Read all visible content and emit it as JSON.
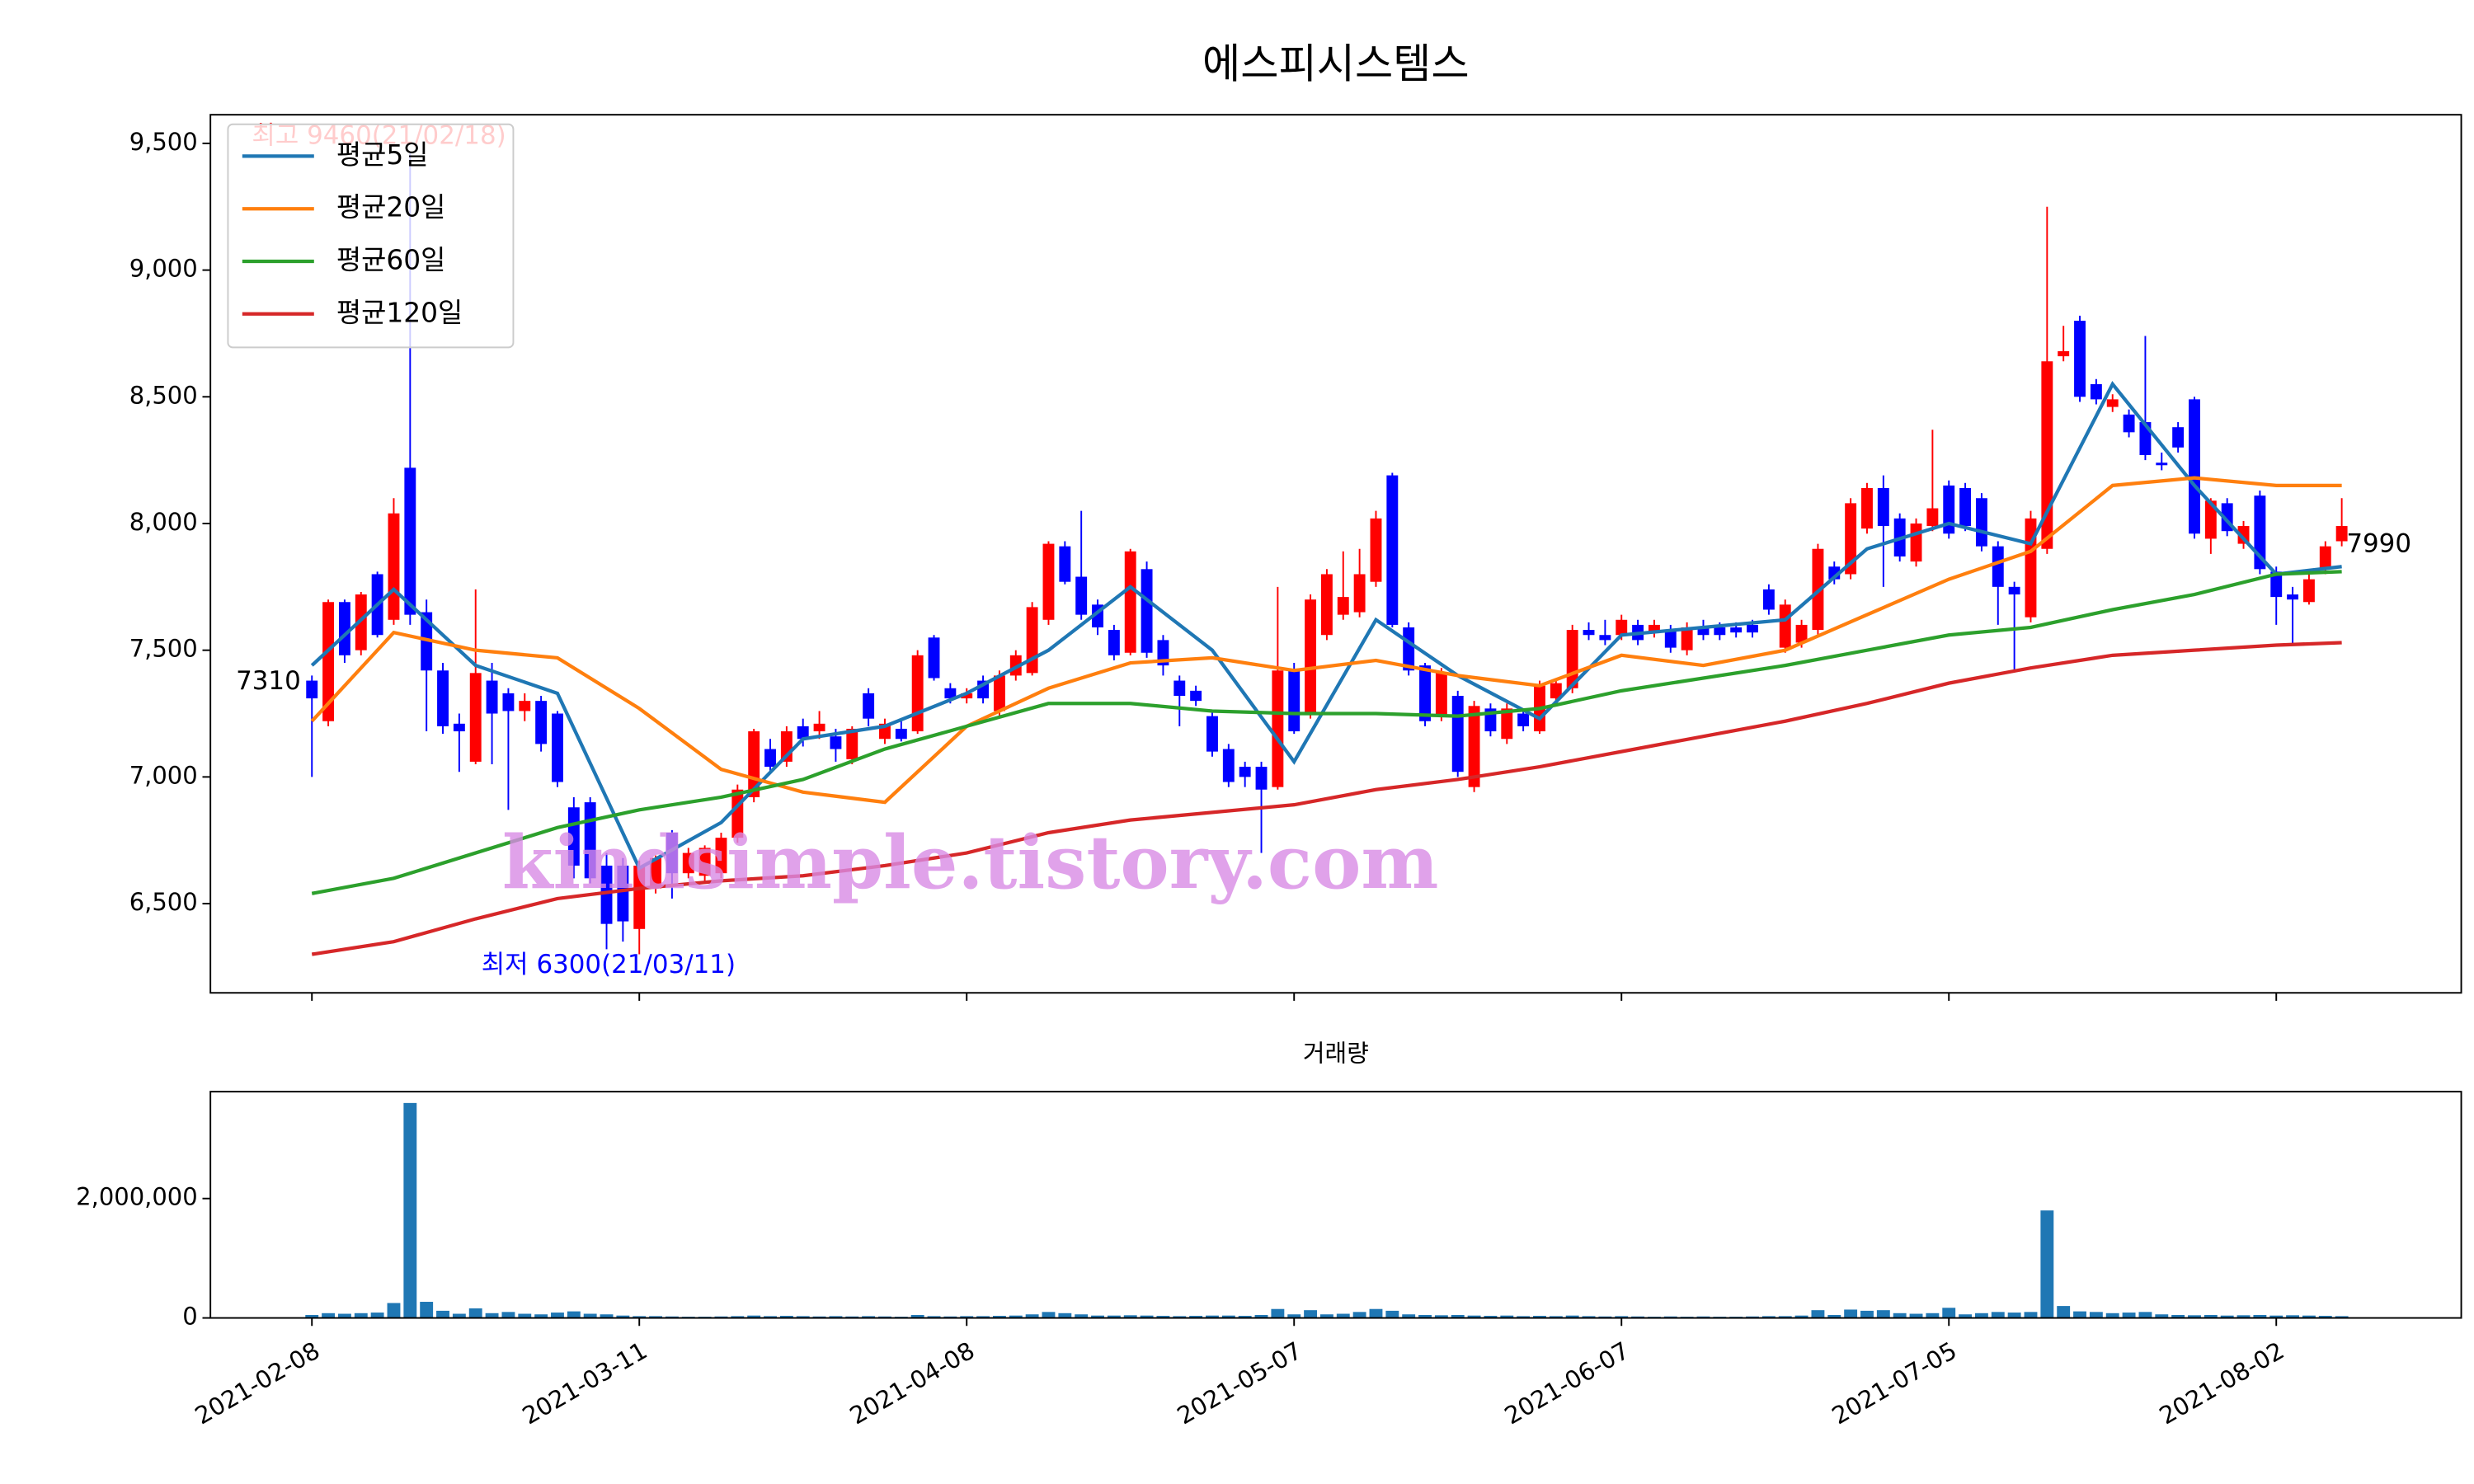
{
  "chart_data": [
    {
      "type": "candlestick",
      "title": "에스피시스템스",
      "xlim": [
        -6.2,
        131.3
      ],
      "ylim": [
        6148,
        9613
      ],
      "xticks": [
        0,
        20,
        40,
        60,
        80,
        100,
        120
      ],
      "yticks": [
        {
          "value": 6500,
          "label": "6,500"
        },
        {
          "value": 7000,
          "label": "7,000"
        },
        {
          "value": 7500,
          "label": "7,500"
        },
        {
          "value": 8000,
          "label": "8,000"
        },
        {
          "value": 8500,
          "label": "8,500"
        },
        {
          "value": 9000,
          "label": "9,000"
        },
        {
          "value": 9500,
          "label": "9,500"
        }
      ],
      "up_color": "#ff0000",
      "down_color": "#0000ff",
      "legend": "upper left",
      "annotations": [
        {
          "text": "최고 9460(21/02/18)",
          "color": "#ff0000"
        },
        {
          "text": "최저 6300(21/03/11)",
          "color": "#0000ff"
        },
        {
          "text": "7310",
          "color": "#000000"
        },
        {
          "text": "7990",
          "color": "#000000"
        }
      ],
      "watermark": "kindsimple.tistory.com",
      "ohlc": [
        [
          7380,
          7400,
          7000,
          7310
        ],
        [
          7220,
          7700,
          7200,
          7690
        ],
        [
          7690,
          7700,
          7450,
          7480
        ],
        [
          7500,
          7730,
          7480,
          7720
        ],
        [
          7800,
          7810,
          7550,
          7560
        ],
        [
          7620,
          8100,
          7600,
          8040
        ],
        [
          8220,
          9460,
          7600,
          7640
        ],
        [
          7650,
          7700,
          7180,
          7420
        ],
        [
          7420,
          7450,
          7170,
          7200
        ],
        [
          7210,
          7250,
          7020,
          7180
        ],
        [
          7060,
          7740,
          7050,
          7410
        ],
        [
          7380,
          7450,
          7050,
          7250
        ],
        [
          7330,
          7350,
          6870,
          7260
        ],
        [
          7260,
          7330,
          7220,
          7300
        ],
        [
          7300,
          7320,
          7100,
          7130
        ],
        [
          7250,
          7260,
          6960,
          6980
        ],
        [
          6880,
          6920,
          6600,
          6650
        ],
        [
          6900,
          6920,
          6580,
          6600
        ],
        [
          6650,
          6700,
          6320,
          6420
        ],
        [
          6650,
          6680,
          6350,
          6430
        ],
        [
          6400,
          6670,
          6300,
          6650
        ],
        [
          6560,
          6690,
          6540,
          6680
        ],
        [
          6780,
          6790,
          6520,
          6620
        ],
        [
          6620,
          6720,
          6600,
          6700
        ],
        [
          6610,
          6730,
          6580,
          6720
        ],
        [
          6620,
          6780,
          6600,
          6760
        ],
        [
          6760,
          6970,
          6740,
          6950
        ],
        [
          6920,
          7190,
          6900,
          7180
        ],
        [
          7110,
          7150,
          7020,
          7040
        ],
        [
          7060,
          7200,
          7040,
          7180
        ],
        [
          7200,
          7230,
          7120,
          7150
        ],
        [
          7180,
          7260,
          7150,
          7210
        ],
        [
          7160,
          7190,
          7060,
          7110
        ],
        [
          7070,
          7200,
          7050,
          7190
        ],
        [
          7330,
          7350,
          7200,
          7230
        ],
        [
          7150,
          7230,
          7130,
          7210
        ],
        [
          7190,
          7220,
          7140,
          7150
        ],
        [
          7180,
          7500,
          7170,
          7480
        ],
        [
          7550,
          7560,
          7380,
          7390
        ],
        [
          7350,
          7370,
          7290,
          7310
        ],
        [
          7310,
          7350,
          7290,
          7330
        ],
        [
          7380,
          7400,
          7290,
          7310
        ],
        [
          7260,
          7420,
          7240,
          7400
        ],
        [
          7400,
          7500,
          7380,
          7480
        ],
        [
          7410,
          7690,
          7400,
          7670
        ],
        [
          7620,
          7930,
          7600,
          7920
        ],
        [
          7910,
          7930,
          7760,
          7770
        ],
        [
          7790,
          8050,
          7620,
          7640
        ],
        [
          7680,
          7700,
          7560,
          7590
        ],
        [
          7580,
          7600,
          7460,
          7480
        ],
        [
          7490,
          7900,
          7480,
          7890
        ],
        [
          7820,
          7850,
          7470,
          7490
        ],
        [
          7540,
          7560,
          7400,
          7440
        ],
        [
          7380,
          7400,
          7200,
          7320
        ],
        [
          7340,
          7360,
          7280,
          7300
        ],
        [
          7240,
          7260,
          7080,
          7100
        ],
        [
          7110,
          7130,
          6960,
          6980
        ],
        [
          7040,
          7060,
          6960,
          7000
        ],
        [
          7040,
          7060,
          6700,
          6950
        ],
        [
          6960,
          7750,
          6950,
          7420
        ],
        [
          7420,
          7450,
          7170,
          7180
        ],
        [
          7250,
          7720,
          7230,
          7700
        ],
        [
          7560,
          7820,
          7540,
          7800
        ],
        [
          7640,
          7890,
          7620,
          7710
        ],
        [
          7650,
          7900,
          7630,
          7800
        ],
        [
          7770,
          8050,
          7750,
          8020
        ],
        [
          8190,
          8200,
          7590,
          7600
        ],
        [
          7590,
          7610,
          7400,
          7420
        ],
        [
          7440,
          7450,
          7200,
          7220
        ],
        [
          7240,
          7430,
          7220,
          7410
        ],
        [
          7320,
          7340,
          7000,
          7020
        ],
        [
          6960,
          7300,
          6940,
          7280
        ],
        [
          7270,
          7290,
          7160,
          7180
        ],
        [
          7150,
          7290,
          7130,
          7270
        ],
        [
          7250,
          7270,
          7180,
          7200
        ],
        [
          7180,
          7380,
          7170,
          7360
        ],
        [
          7310,
          7390,
          7290,
          7370
        ],
        [
          7350,
          7600,
          7330,
          7580
        ],
        [
          7580,
          7610,
          7540,
          7560
        ],
        [
          7560,
          7620,
          7520,
          7540
        ],
        [
          7560,
          7640,
          7540,
          7620
        ],
        [
          7600,
          7620,
          7520,
          7540
        ],
        [
          7570,
          7620,
          7550,
          7600
        ],
        [
          7580,
          7600,
          7490,
          7510
        ],
        [
          7500,
          7610,
          7480,
          7590
        ],
        [
          7590,
          7620,
          7540,
          7560
        ],
        [
          7590,
          7610,
          7540,
          7560
        ],
        [
          7590,
          7610,
          7550,
          7570
        ],
        [
          7600,
          7620,
          7550,
          7570
        ],
        [
          7740,
          7760,
          7640,
          7660
        ],
        [
          7510,
          7700,
          7490,
          7680
        ],
        [
          7530,
          7620,
          7510,
          7600
        ],
        [
          7580,
          7920,
          7560,
          7900
        ],
        [
          7830,
          7850,
          7760,
          7780
        ],
        [
          7800,
          8100,
          7780,
          8080
        ],
        [
          7980,
          8160,
          7960,
          8140
        ],
        [
          8140,
          8190,
          7750,
          7990
        ],
        [
          8020,
          8040,
          7850,
          7870
        ],
        [
          7850,
          8020,
          7830,
          8000
        ],
        [
          7990,
          8370,
          7970,
          8060
        ],
        [
          8150,
          8170,
          7940,
          7960
        ],
        [
          8140,
          8160,
          7970,
          7990
        ],
        [
          8100,
          8120,
          7890,
          7910
        ],
        [
          7910,
          7930,
          7600,
          7750
        ],
        [
          7750,
          7770,
          7420,
          7720
        ],
        [
          7630,
          8050,
          7610,
          8020
        ],
        [
          7900,
          9250,
          7880,
          8640
        ],
        [
          8660,
          8780,
          8640,
          8680
        ],
        [
          8800,
          8820,
          8480,
          8500
        ],
        [
          8550,
          8570,
          8470,
          8490
        ],
        [
          8460,
          8510,
          8440,
          8490
        ],
        [
          8430,
          8450,
          8340,
          8360
        ],
        [
          8400,
          8740,
          8250,
          8270
        ],
        [
          8240,
          8280,
          8210,
          8230
        ],
        [
          8380,
          8400,
          8280,
          8300
        ],
        [
          8490,
          8500,
          7940,
          7960
        ],
        [
          7940,
          8100,
          7880,
          8090
        ],
        [
          8080,
          8100,
          7950,
          7970
        ],
        [
          7920,
          8010,
          7900,
          7990
        ],
        [
          8110,
          8130,
          7800,
          7820
        ],
        [
          7810,
          7830,
          7600,
          7710
        ],
        [
          7720,
          7750,
          7520,
          7700
        ],
        [
          7690,
          7800,
          7680,
          7780
        ],
        [
          7820,
          7930,
          7800,
          7910
        ],
        [
          7930,
          8100,
          7910,
          7990
        ]
      ],
      "series": [
        {
          "name": "평균5일",
          "color": "#1f77b4",
          "x": [
            0,
            5,
            10,
            15,
            20,
            25,
            30,
            35,
            40,
            45,
            50,
            55,
            60,
            65,
            70,
            75,
            80,
            85,
            90,
            95,
            100,
            105,
            110,
            115,
            120,
            124
          ],
          "values": [
            7440,
            7740,
            7440,
            7330,
            6640,
            6820,
            7150,
            7200,
            7330,
            7500,
            7750,
            7500,
            7060,
            7620,
            7400,
            7230,
            7560,
            7590,
            7620,
            7900,
            8000,
            7920,
            8550,
            8150,
            7800,
            7830
          ]
        },
        {
          "name": "평균20일",
          "color": "#ff7f0e",
          "x": [
            0,
            5,
            10,
            15,
            20,
            25,
            30,
            35,
            40,
            45,
            50,
            55,
            60,
            65,
            70,
            75,
            80,
            85,
            90,
            95,
            100,
            105,
            110,
            115,
            120,
            124
          ],
          "values": [
            7220,
            7570,
            7500,
            7470,
            7270,
            7030,
            6940,
            6900,
            7200,
            7350,
            7450,
            7470,
            7420,
            7460,
            7400,
            7360,
            7480,
            7440,
            7500,
            7640,
            7780,
            7890,
            8150,
            8180,
            8150,
            8150
          ]
        },
        {
          "name": "평균60일",
          "color": "#2ca02c",
          "x": [
            0,
            5,
            10,
            15,
            20,
            25,
            30,
            35,
            40,
            45,
            50,
            55,
            60,
            65,
            70,
            75,
            80,
            85,
            90,
            95,
            100,
            105,
            110,
            115,
            120,
            124
          ],
          "values": [
            6540,
            6600,
            6700,
            6800,
            6870,
            6920,
            6990,
            7110,
            7200,
            7290,
            7290,
            7260,
            7250,
            7250,
            7240,
            7270,
            7340,
            7390,
            7440,
            7500,
            7560,
            7590,
            7660,
            7720,
            7800,
            7810
          ]
        },
        {
          "name": "평균120일",
          "color": "#d62728",
          "x": [
            0,
            5,
            10,
            15,
            20,
            25,
            30,
            35,
            40,
            45,
            50,
            55,
            60,
            65,
            70,
            75,
            80,
            85,
            90,
            95,
            100,
            105,
            110,
            115,
            120,
            124
          ],
          "values": [
            6300,
            6350,
            6440,
            6520,
            6560,
            6590,
            6610,
            6650,
            6700,
            6780,
            6830,
            6860,
            6890,
            6950,
            6990,
            7040,
            7100,
            7160,
            7220,
            7290,
            7370,
            7430,
            7480,
            7500,
            7520,
            7530
          ]
        }
      ]
    },
    {
      "type": "bar",
      "title": "거래량",
      "color": "#1f77b4",
      "xlim": [
        -6.2,
        131.3
      ],
      "ylim": [
        0,
        3790000
      ],
      "yticks": [
        0,
        {
          "value": 2000000,
          "label": "2,000,000"
        }
      ],
      "xticks": [
        {
          "value": 0,
          "label": "2021-02-08"
        },
        {
          "value": 20,
          "label": "2021-03-11"
        },
        {
          "value": 40,
          "label": "2021-04-08"
        },
        {
          "value": 60,
          "label": "2021-05-07"
        },
        {
          "value": 80,
          "label": "2021-06-07"
        },
        {
          "value": 100,
          "label": "2021-07-05"
        },
        {
          "value": 120,
          "label": "2021-08-02"
        }
      ],
      "values": [
        50000,
        80000,
        70000,
        80000,
        90000,
        250000,
        3600000,
        270000,
        120000,
        70000,
        160000,
        80000,
        100000,
        70000,
        60000,
        90000,
        110000,
        70000,
        60000,
        40000,
        30000,
        30000,
        25000,
        20000,
        20000,
        25000,
        30000,
        40000,
        30000,
        35000,
        30000,
        25000,
        30000,
        25000,
        30000,
        25000,
        20000,
        50000,
        30000,
        25000,
        30000,
        30000,
        35000,
        40000,
        60000,
        100000,
        80000,
        60000,
        40000,
        40000,
        45000,
        40000,
        35000,
        30000,
        35000,
        40000,
        40000,
        35000,
        50000,
        150000,
        60000,
        130000,
        60000,
        70000,
        100000,
        150000,
        120000,
        60000,
        50000,
        45000,
        50000,
        40000,
        35000,
        40000,
        30000,
        35000,
        30000,
        40000,
        30000,
        25000,
        30000,
        25000,
        20000,
        25000,
        20000,
        25000,
        20000,
        20000,
        25000,
        30000,
        30000,
        40000,
        130000,
        50000,
        140000,
        120000,
        130000,
        80000,
        70000,
        80000,
        170000,
        60000,
        80000,
        100000,
        90000,
        100000,
        1800000,
        200000,
        110000,
        100000,
        80000,
        90000,
        100000,
        60000,
        50000,
        45000,
        50000,
        40000,
        45000,
        50000,
        40000,
        45000,
        40000,
        35000,
        30000
      ]
    }
  ]
}
